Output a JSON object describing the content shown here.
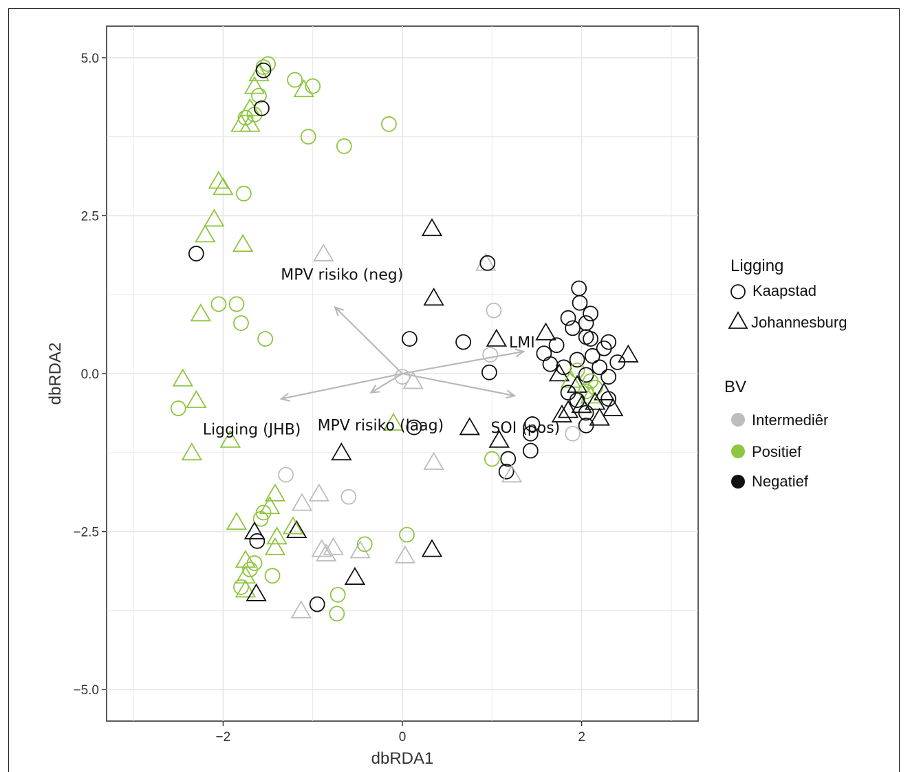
{
  "chart_data": {
    "type": "scatter",
    "xlabel": "dbRDA1",
    "ylabel": "dbRDA2",
    "xlim": [
      -3.3,
      3.3
    ],
    "ylim": [
      -5.5,
      5.5
    ],
    "x_ticks": [
      -2,
      0,
      2
    ],
    "x_tick_labels": [
      "−2",
      "0",
      "2"
    ],
    "y_ticks": [
      -5,
      -2.5,
      0,
      2.5,
      5
    ],
    "y_tick_labels": [
      "−5.0",
      "−2.5",
      "0.0",
      "2.5",
      "5.0"
    ],
    "grid": true,
    "colors": {
      "Intermediêr": "#bdbdbd",
      "Positief": "#8dc63f",
      "Negatief": "#111111"
    },
    "vectors": [
      {
        "label": "MPV risiko (neg)",
        "x": -0.75,
        "y": 1.05
      },
      {
        "label": "LMI",
        "x": 1.35,
        "y": 0.35
      },
      {
        "label": "Ligging (JHB)",
        "x": -1.35,
        "y": -0.4
      },
      {
        "label": "MPV risiko (laag)",
        "x": -0.35,
        "y": -0.3
      },
      {
        "label": "SOI (pos)",
        "x": 1.25,
        "y": -0.35
      }
    ],
    "points": [
      {
        "x": -1.5,
        "y": 4.9,
        "shape": "Kaapstad",
        "bv": "Positief"
      },
      {
        "x": -1.6,
        "y": 4.75,
        "shape": "Johannesburg",
        "bv": "Positief"
      },
      {
        "x": -1.55,
        "y": 4.85,
        "shape": "Kaapstad",
        "bv": "Positief"
      },
      {
        "x": -1.65,
        "y": 4.55,
        "shape": "Johannesburg",
        "bv": "Positief"
      },
      {
        "x": -1.6,
        "y": 4.4,
        "shape": "Kaapstad",
        "bv": "Positief"
      },
      {
        "x": -1.7,
        "y": 4.2,
        "shape": "Johannesburg",
        "bv": "Positief"
      },
      {
        "x": -1.75,
        "y": 4.05,
        "shape": "Kaapstad",
        "bv": "Positief"
      },
      {
        "x": -1.8,
        "y": 3.95,
        "shape": "Johannesburg",
        "bv": "Positief"
      },
      {
        "x": -1.7,
        "y": 3.95,
        "shape": "Johannesburg",
        "bv": "Positief"
      },
      {
        "x": -1.65,
        "y": 4.1,
        "shape": "Kaapstad",
        "bv": "Positief"
      },
      {
        "x": -1.2,
        "y": 4.65,
        "shape": "Kaapstad",
        "bv": "Positief"
      },
      {
        "x": -1.1,
        "y": 4.5,
        "shape": "Johannesburg",
        "bv": "Positief"
      },
      {
        "x": -1.0,
        "y": 4.55,
        "shape": "Kaapstad",
        "bv": "Positief"
      },
      {
        "x": -1.05,
        "y": 3.75,
        "shape": "Kaapstad",
        "bv": "Positief"
      },
      {
        "x": -0.65,
        "y": 3.6,
        "shape": "Kaapstad",
        "bv": "Positief"
      },
      {
        "x": -0.15,
        "y": 3.95,
        "shape": "Kaapstad",
        "bv": "Positief"
      },
      {
        "x": -1.55,
        "y": 4.8,
        "shape": "Kaapstad",
        "bv": "Negatief"
      },
      {
        "x": -1.57,
        "y": 4.2,
        "shape": "Kaapstad",
        "bv": "Negatief"
      },
      {
        "x": -2.05,
        "y": 3.05,
        "shape": "Johannesburg",
        "bv": "Positief"
      },
      {
        "x": -2.0,
        "y": 2.95,
        "shape": "Johannesburg",
        "bv": "Positief"
      },
      {
        "x": -1.77,
        "y": 2.85,
        "shape": "Kaapstad",
        "bv": "Positief"
      },
      {
        "x": -2.1,
        "y": 2.45,
        "shape": "Johannesburg",
        "bv": "Positief"
      },
      {
        "x": -2.2,
        "y": 2.2,
        "shape": "Johannesburg",
        "bv": "Positief"
      },
      {
        "x": -1.78,
        "y": 2.05,
        "shape": "Johannesburg",
        "bv": "Positief"
      },
      {
        "x": -2.3,
        "y": 1.9,
        "shape": "Kaapstad",
        "bv": "Negatief"
      },
      {
        "x": -0.88,
        "y": 1.9,
        "shape": "Johannesburg",
        "bv": "Intermediêr"
      },
      {
        "x": 0.33,
        "y": 2.3,
        "shape": "Johannesburg",
        "bv": "Negatief"
      },
      {
        "x": 0.93,
        "y": 1.75,
        "shape": "Johannesburg",
        "bv": "Intermediêr"
      },
      {
        "x": 0.95,
        "y": 1.75,
        "shape": "Kaapstad",
        "bv": "Negatief"
      },
      {
        "x": 0.35,
        "y": 1.2,
        "shape": "Johannesburg",
        "bv": "Negatief"
      },
      {
        "x": 1.02,
        "y": 1.0,
        "shape": "Kaapstad",
        "bv": "Intermediêr"
      },
      {
        "x": -2.05,
        "y": 1.1,
        "shape": "Kaapstad",
        "bv": "Positief"
      },
      {
        "x": -1.85,
        "y": 1.1,
        "shape": "Kaapstad",
        "bv": "Positief"
      },
      {
        "x": -2.25,
        "y": 0.95,
        "shape": "Johannesburg",
        "bv": "Positief"
      },
      {
        "x": -1.8,
        "y": 0.8,
        "shape": "Kaapstad",
        "bv": "Positief"
      },
      {
        "x": -1.53,
        "y": 0.55,
        "shape": "Kaapstad",
        "bv": "Positief"
      },
      {
        "x": 0.08,
        "y": 0.55,
        "shape": "Kaapstad",
        "bv": "Negatief"
      },
      {
        "x": 0.68,
        "y": 0.5,
        "shape": "Kaapstad",
        "bv": "Negatief"
      },
      {
        "x": 1.05,
        "y": 0.55,
        "shape": "Johannesburg",
        "bv": "Negatief"
      },
      {
        "x": 0.98,
        "y": 0.3,
        "shape": "Kaapstad",
        "bv": "Intermediêr"
      },
      {
        "x": 0.97,
        "y": 0.02,
        "shape": "Kaapstad",
        "bv": "Negatief"
      },
      {
        "x": 0.0,
        "y": -0.05,
        "shape": "Kaapstad",
        "bv": "Intermediêr"
      },
      {
        "x": 0.12,
        "y": -0.12,
        "shape": "Johannesburg",
        "bv": "Intermediêr"
      },
      {
        "x": -2.45,
        "y": -0.08,
        "shape": "Johannesburg",
        "bv": "Positief"
      },
      {
        "x": -2.3,
        "y": -0.42,
        "shape": "Johannesburg",
        "bv": "Positief"
      },
      {
        "x": -2.5,
        "y": -0.55,
        "shape": "Kaapstad",
        "bv": "Positief"
      },
      {
        "x": -1.92,
        "y": -1.05,
        "shape": "Johannesburg",
        "bv": "Positief"
      },
      {
        "x": -2.35,
        "y": -1.25,
        "shape": "Johannesburg",
        "bv": "Positief"
      },
      {
        "x": -0.1,
        "y": -0.78,
        "shape": "Johannesburg",
        "bv": "Positief"
      },
      {
        "x": 0.13,
        "y": -0.85,
        "shape": "Kaapstad",
        "bv": "Negatief"
      },
      {
        "x": 0.75,
        "y": -0.85,
        "shape": "Johannesburg",
        "bv": "Negatief"
      },
      {
        "x": 1.08,
        "y": -1.05,
        "shape": "Johannesburg",
        "bv": "Negatief"
      },
      {
        "x": 1.0,
        "y": -1.35,
        "shape": "Kaapstad",
        "bv": "Positief"
      },
      {
        "x": 1.18,
        "y": -1.35,
        "shape": "Kaapstad",
        "bv": "Negatief"
      },
      {
        "x": 1.16,
        "y": -1.55,
        "shape": "Kaapstad",
        "bv": "Negatief"
      },
      {
        "x": 1.22,
        "y": -1.6,
        "shape": "Johannesburg",
        "bv": "Intermediêr"
      },
      {
        "x": 0.35,
        "y": -1.4,
        "shape": "Johannesburg",
        "bv": "Intermediêr"
      },
      {
        "x": -0.68,
        "y": -1.25,
        "shape": "Johannesburg",
        "bv": "Negatief"
      },
      {
        "x": 1.45,
        "y": -0.8,
        "shape": "Kaapstad",
        "bv": "Negatief"
      },
      {
        "x": 1.43,
        "y": -0.95,
        "shape": "Kaapstad",
        "bv": "Negatief"
      },
      {
        "x": 1.43,
        "y": -1.22,
        "shape": "Kaapstad",
        "bv": "Negatief"
      },
      {
        "x": -1.3,
        "y": -1.6,
        "shape": "Kaapstad",
        "bv": "Intermediêr"
      },
      {
        "x": -1.42,
        "y": -1.9,
        "shape": "Johannesburg",
        "bv": "Positief"
      },
      {
        "x": -1.12,
        "y": -2.05,
        "shape": "Johannesburg",
        "bv": "Intermediêr"
      },
      {
        "x": -0.93,
        "y": -1.9,
        "shape": "Johannesburg",
        "bv": "Intermediêr"
      },
      {
        "x": -0.6,
        "y": -1.95,
        "shape": "Kaapstad",
        "bv": "Intermediêr"
      },
      {
        "x": -1.48,
        "y": -2.1,
        "shape": "Johannesburg",
        "bv": "Positief"
      },
      {
        "x": -1.55,
        "y": -2.2,
        "shape": "Kaapstad",
        "bv": "Positief"
      },
      {
        "x": -1.58,
        "y": -2.3,
        "shape": "Kaapstad",
        "bv": "Positief"
      },
      {
        "x": -1.85,
        "y": -2.35,
        "shape": "Johannesburg",
        "bv": "Positief"
      },
      {
        "x": -1.65,
        "y": -2.5,
        "shape": "Johannesburg",
        "bv": "Negatief"
      },
      {
        "x": -1.18,
        "y": -2.48,
        "shape": "Johannesburg",
        "bv": "Negatief"
      },
      {
        "x": -1.22,
        "y": -2.42,
        "shape": "Johannesburg",
        "bv": "Positief"
      },
      {
        "x": -1.4,
        "y": -2.58,
        "shape": "Johannesburg",
        "bv": "Positief"
      },
      {
        "x": -1.62,
        "y": -2.65,
        "shape": "Kaapstad",
        "bv": "Negatief"
      },
      {
        "x": -1.42,
        "y": -2.75,
        "shape": "Johannesburg",
        "bv": "Positief"
      },
      {
        "x": -0.9,
        "y": -2.78,
        "shape": "Johannesburg",
        "bv": "Intermediêr"
      },
      {
        "x": -0.85,
        "y": -2.85,
        "shape": "Johannesburg",
        "bv": "Intermediêr"
      },
      {
        "x": -0.77,
        "y": -2.75,
        "shape": "Johannesburg",
        "bv": "Intermediêr"
      },
      {
        "x": -0.47,
        "y": -2.8,
        "shape": "Johannesburg",
        "bv": "Intermediêr"
      },
      {
        "x": -0.42,
        "y": -2.7,
        "shape": "Kaapstad",
        "bv": "Positief"
      },
      {
        "x": 0.05,
        "y": -2.55,
        "shape": "Kaapstad",
        "bv": "Positief"
      },
      {
        "x": 0.03,
        "y": -2.88,
        "shape": "Johannesburg",
        "bv": "Intermediêr"
      },
      {
        "x": 0.33,
        "y": -2.78,
        "shape": "Johannesburg",
        "bv": "Negatief"
      },
      {
        "x": -0.53,
        "y": -3.22,
        "shape": "Johannesburg",
        "bv": "Negatief"
      },
      {
        "x": -1.75,
        "y": -2.95,
        "shape": "Johannesburg",
        "bv": "Positief"
      },
      {
        "x": -1.65,
        "y": -3.0,
        "shape": "Kaapstad",
        "bv": "Positief"
      },
      {
        "x": -1.7,
        "y": -3.1,
        "shape": "Kaapstad",
        "bv": "Positief"
      },
      {
        "x": -1.75,
        "y": -3.2,
        "shape": "Johannesburg",
        "bv": "Positief"
      },
      {
        "x": -1.45,
        "y": -3.2,
        "shape": "Kaapstad",
        "bv": "Positief"
      },
      {
        "x": -1.8,
        "y": -3.38,
        "shape": "Kaapstad",
        "bv": "Positief"
      },
      {
        "x": -1.75,
        "y": -3.42,
        "shape": "Johannesburg",
        "bv": "Positief"
      },
      {
        "x": -1.63,
        "y": -3.48,
        "shape": "Johannesburg",
        "bv": "Negatief"
      },
      {
        "x": -0.72,
        "y": -3.5,
        "shape": "Kaapstad",
        "bv": "Positief"
      },
      {
        "x": -0.95,
        "y": -3.65,
        "shape": "Kaapstad",
        "bv": "Negatief"
      },
      {
        "x": -1.13,
        "y": -3.75,
        "shape": "Johannesburg",
        "bv": "Intermediêr"
      },
      {
        "x": -0.73,
        "y": -3.8,
        "shape": "Kaapstad",
        "bv": "Positief"
      },
      {
        "x": 1.97,
        "y": 1.35,
        "shape": "Kaapstad",
        "bv": "Negatief"
      },
      {
        "x": 1.98,
        "y": 1.12,
        "shape": "Kaapstad",
        "bv": "Negatief"
      },
      {
        "x": 2.1,
        "y": 0.95,
        "shape": "Kaapstad",
        "bv": "Negatief"
      },
      {
        "x": 1.85,
        "y": 0.88,
        "shape": "Kaapstad",
        "bv": "Negatief"
      },
      {
        "x": 2.05,
        "y": 0.8,
        "shape": "Kaapstad",
        "bv": "Negatief"
      },
      {
        "x": 1.9,
        "y": 0.72,
        "shape": "Kaapstad",
        "bv": "Negatief"
      },
      {
        "x": 1.6,
        "y": 0.65,
        "shape": "Johannesburg",
        "bv": "Negatief"
      },
      {
        "x": 2.05,
        "y": 0.58,
        "shape": "Kaapstad",
        "bv": "Negatief"
      },
      {
        "x": 2.1,
        "y": 0.55,
        "shape": "Kaapstad",
        "bv": "Negatief"
      },
      {
        "x": 2.3,
        "y": 0.5,
        "shape": "Kaapstad",
        "bv": "Negatief"
      },
      {
        "x": 1.72,
        "y": 0.45,
        "shape": "Kaapstad",
        "bv": "Negatief"
      },
      {
        "x": 2.25,
        "y": 0.4,
        "shape": "Kaapstad",
        "bv": "Negatief"
      },
      {
        "x": 1.58,
        "y": 0.32,
        "shape": "Kaapstad",
        "bv": "Negatief"
      },
      {
        "x": 2.52,
        "y": 0.3,
        "shape": "Johannesburg",
        "bv": "Negatief"
      },
      {
        "x": 2.12,
        "y": 0.28,
        "shape": "Kaapstad",
        "bv": "Negatief"
      },
      {
        "x": 1.95,
        "y": 0.22,
        "shape": "Kaapstad",
        "bv": "Negatief"
      },
      {
        "x": 2.4,
        "y": 0.18,
        "shape": "Kaapstad",
        "bv": "Negatief"
      },
      {
        "x": 1.65,
        "y": 0.15,
        "shape": "Kaapstad",
        "bv": "Negatief"
      },
      {
        "x": 2.2,
        "y": 0.1,
        "shape": "Kaapstad",
        "bv": "Negatief"
      },
      {
        "x": 1.8,
        "y": 0.1,
        "shape": "Kaapstad",
        "bv": "Negatief"
      },
      {
        "x": 1.95,
        "y": 0.05,
        "shape": "Kaapstad",
        "bv": "Positief"
      },
      {
        "x": 1.75,
        "y": 0.0,
        "shape": "Johannesburg",
        "bv": "Negatief"
      },
      {
        "x": 2.05,
        "y": -0.02,
        "shape": "Kaapstad",
        "bv": "Negatief"
      },
      {
        "x": 2.3,
        "y": -0.05,
        "shape": "Kaapstad",
        "bv": "Negatief"
      },
      {
        "x": 1.88,
        "y": -0.1,
        "shape": "Johannesburg",
        "bv": "Positief"
      },
      {
        "x": 2.1,
        "y": -0.12,
        "shape": "Kaapstad",
        "bv": "Positief"
      },
      {
        "x": 1.95,
        "y": -0.18,
        "shape": "Johannesburg",
        "bv": "Negatief"
      },
      {
        "x": 2.15,
        "y": -0.22,
        "shape": "Kaapstad",
        "bv": "Positief"
      },
      {
        "x": 2.05,
        "y": -0.28,
        "shape": "Kaapstad",
        "bv": "Positief"
      },
      {
        "x": 1.85,
        "y": -0.3,
        "shape": "Kaapstad",
        "bv": "Negatief"
      },
      {
        "x": 2.25,
        "y": -0.3,
        "shape": "Johannesburg",
        "bv": "Negatief"
      },
      {
        "x": 2.1,
        "y": -0.35,
        "shape": "Johannesburg",
        "bv": "Positief"
      },
      {
        "x": 2.3,
        "y": -0.4,
        "shape": "Kaapstad",
        "bv": "Negatief"
      },
      {
        "x": 1.95,
        "y": -0.42,
        "shape": "Kaapstad",
        "bv": "Negatief"
      },
      {
        "x": 2.15,
        "y": -0.45,
        "shape": "Johannesburg",
        "bv": "Negatief"
      },
      {
        "x": 2.0,
        "y": -0.5,
        "shape": "Johannesburg",
        "bv": "Negatief"
      },
      {
        "x": 2.35,
        "y": -0.55,
        "shape": "Johannesburg",
        "bv": "Negatief"
      },
      {
        "x": 1.85,
        "y": -0.58,
        "shape": "Johannesburg",
        "bv": "Negatief"
      },
      {
        "x": 1.78,
        "y": -0.65,
        "shape": "Johannesburg",
        "bv": "Negatief"
      },
      {
        "x": 2.05,
        "y": -0.62,
        "shape": "Kaapstad",
        "bv": "Negatief"
      },
      {
        "x": 2.2,
        "y": -0.7,
        "shape": "Johannesburg",
        "bv": "Negatief"
      },
      {
        "x": 2.05,
        "y": -0.82,
        "shape": "Kaapstad",
        "bv": "Negatief"
      },
      {
        "x": 1.9,
        "y": -0.95,
        "shape": "Kaapstad",
        "bv": "Intermediêr"
      }
    ]
  },
  "legend": {
    "shape_title": "Ligging",
    "shape_items": [
      {
        "label": "Kaapstad",
        "shape": "circle-icon"
      },
      {
        "label": "Johannesburg",
        "shape": "triangle-icon"
      }
    ],
    "color_title": "BV",
    "color_items": [
      {
        "label": "Intermediêr",
        "color": "#bdbdbd"
      },
      {
        "label": "Positief",
        "color": "#8dc63f"
      },
      {
        "label": "Negatief",
        "color": "#111111"
      }
    ]
  }
}
